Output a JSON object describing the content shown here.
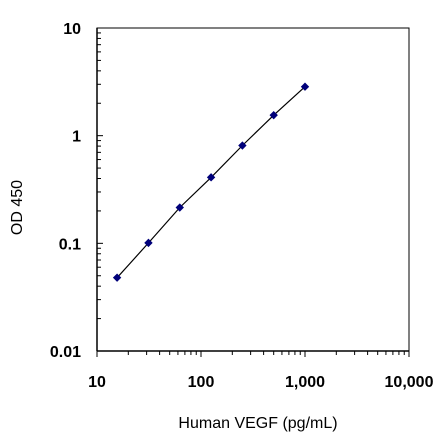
{
  "chart_data": {
    "type": "scatter",
    "title": "",
    "xlabel": "Human VEGF  (pg/mL)",
    "ylabel": "OD 450",
    "xscale": "log",
    "yscale": "log",
    "xlim": [
      10,
      10000
    ],
    "ylim": [
      0.01,
      10
    ],
    "x_ticks": [
      10,
      100,
      1000,
      10000
    ],
    "x_tick_labels": [
      "10",
      "100",
      "1,000",
      "10,000"
    ],
    "y_ticks": [
      0.01,
      0.1,
      1,
      10
    ],
    "y_tick_labels": [
      "0.01",
      "0.1",
      "1",
      "10"
    ],
    "grid": false,
    "legend": "none",
    "marker": "diamond",
    "marker_color": "#00007a",
    "line_color": "#000000",
    "trendline": true,
    "series": [
      {
        "x": [
          15.6,
          31.25,
          62.5,
          125,
          250,
          500,
          1000
        ],
        "y": [
          0.048,
          0.101,
          0.215,
          0.41,
          0.81,
          1.55,
          2.85
        ]
      }
    ]
  }
}
